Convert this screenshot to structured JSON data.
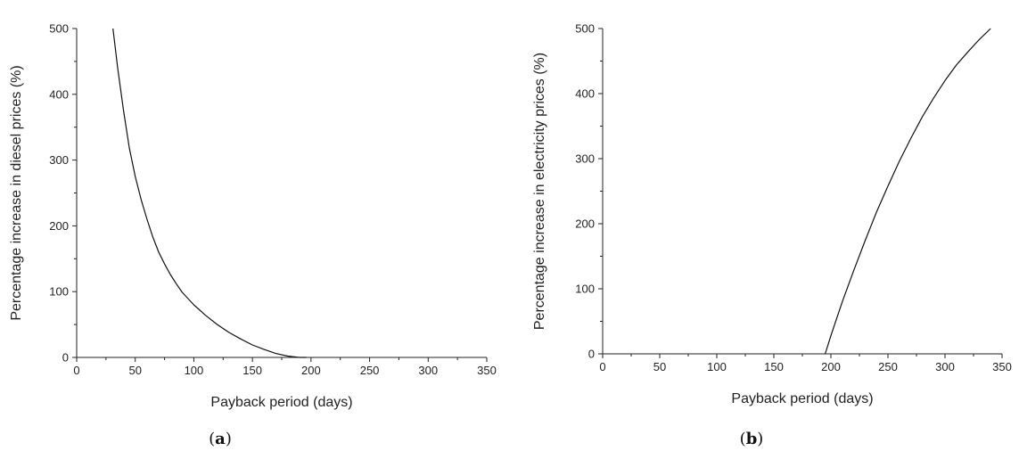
{
  "chart_data": [
    {
      "type": "line",
      "panel_label": "a",
      "xlabel": "Payback period (days)",
      "ylabel": "Percentage increase in diesel prices (%)",
      "xlim": [
        0,
        350
      ],
      "ylim": [
        0,
        500
      ],
      "xticks": [
        0,
        50,
        100,
        150,
        200,
        250,
        300,
        350
      ],
      "yticks": [
        0,
        100,
        200,
        300,
        400,
        500
      ],
      "grid": false,
      "series": [
        {
          "x": [
            31,
            35,
            40,
            45,
            50,
            55,
            60,
            65,
            70,
            75,
            80,
            85,
            90,
            100,
            110,
            120,
            130,
            140,
            150,
            160,
            170,
            180,
            190,
            196
          ],
          "y": [
            500,
            440,
            375,
            318,
            275,
            240,
            210,
            183,
            160,
            142,
            126,
            112,
            99,
            80,
            64,
            50,
            38,
            28,
            19,
            12,
            6,
            2,
            0,
            0
          ]
        }
      ]
    },
    {
      "type": "line",
      "panel_label": "b",
      "xlabel": "Payback period (days)",
      "ylabel": "Percentage increase in electricity prices (%)",
      "xlim": [
        0,
        350
      ],
      "ylim": [
        0,
        500
      ],
      "xticks": [
        0,
        50,
        100,
        150,
        200,
        250,
        300,
        350
      ],
      "yticks": [
        0,
        100,
        200,
        300,
        400,
        500
      ],
      "grid": false,
      "series": [
        {
          "x": [
            195,
            200,
            210,
            220,
            230,
            240,
            250,
            260,
            270,
            280,
            290,
            300,
            310,
            320,
            330,
            340
          ],
          "y": [
            0,
            28,
            80,
            128,
            174,
            218,
            258,
            296,
            331,
            364,
            393,
            420,
            444,
            464,
            483,
            500
          ]
        }
      ]
    }
  ]
}
